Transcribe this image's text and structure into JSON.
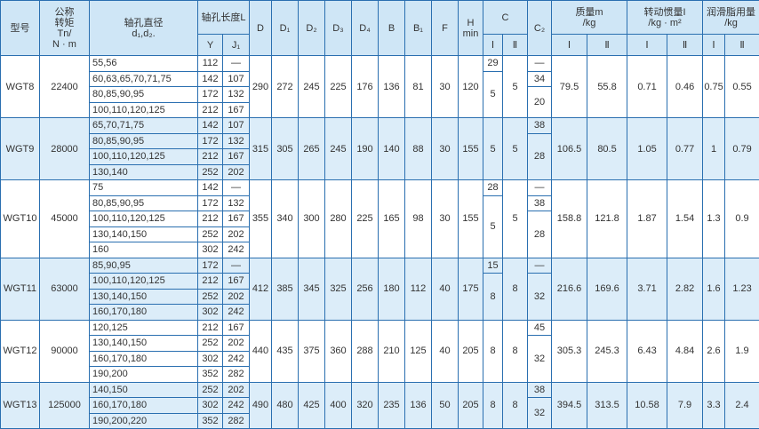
{
  "header": {
    "model": "型号",
    "torque": [
      "公称",
      "转矩",
      "Tn/",
      "N · m"
    ],
    "bore": [
      "轴孔直径",
      "d₁,d₂."
    ],
    "length": "轴孔长度L",
    "Y": "Y",
    "J1": "J₁",
    "dims": [
      "D",
      "D₁",
      "D₂",
      "D₃",
      "D₄",
      "B",
      "B₁",
      "F"
    ],
    "H": [
      "H",
      "min"
    ],
    "C": "C",
    "C2": "C₂",
    "mass": [
      "质量m",
      "/kg"
    ],
    "inertia": [
      "转动惯量I",
      "/kg · m²"
    ],
    "grease": [
      "润滑脂用量",
      "/kg"
    ],
    "sub": [
      "Ⅰ",
      "Ⅱ",
      "Ⅰ",
      "Ⅱ",
      "Ⅰ",
      "Ⅱ",
      "Ⅰ",
      "Ⅱ"
    ]
  },
  "groups": [
    {
      "model": "WGT8",
      "torque": "22400",
      "bores": [
        {
          "d": "55,56",
          "Y": "112",
          "J1": "—"
        },
        {
          "d": "60,63,65,70,71,75",
          "Y": "142",
          "J1": "107"
        },
        {
          "d": "80,85,90,95",
          "Y": "172",
          "J1": "132"
        },
        {
          "d": "100,110,120,125",
          "Y": "212",
          "J1": "167"
        }
      ],
      "dims": [
        "290",
        "272",
        "245",
        "225",
        "176",
        "136",
        "81",
        "30",
        "120"
      ],
      "cI": [
        "29",
        "5",
        null,
        null
      ],
      "cII": [
        "5",
        null,
        null,
        null
      ],
      "c2": [
        "—",
        "34",
        "20",
        null
      ],
      "mass": [
        "79.5",
        "55.8"
      ],
      "inertia": [
        "0.71",
        "0.46"
      ],
      "grease": [
        "0.75",
        "0.55"
      ]
    },
    {
      "model": "WGT9",
      "torque": "28000",
      "bores": [
        {
          "d": "65,70,71,75",
          "Y": "142",
          "J1": "107"
        },
        {
          "d": "80,85,90,95",
          "Y": "172",
          "J1": "132"
        },
        {
          "d": "100,110,120,125",
          "Y": "212",
          "J1": "167"
        },
        {
          "d": "130,140",
          "Y": "252",
          "J1": "202"
        }
      ],
      "dims": [
        "315",
        "305",
        "265",
        "245",
        "190",
        "140",
        "88",
        "30",
        "155"
      ],
      "cI": [
        "5",
        null,
        null,
        null
      ],
      "cII": [
        "5",
        null,
        null,
        null
      ],
      "c2": [
        "38",
        "28",
        null,
        null
      ],
      "mass": [
        "106.5",
        "80.5"
      ],
      "inertia": [
        "1.05",
        "0.77"
      ],
      "grease": [
        "1",
        "0.79"
      ]
    },
    {
      "model": "WGT10",
      "torque": "45000",
      "bores": [
        {
          "d": "75",
          "Y": "142",
          "J1": "—"
        },
        {
          "d": "80,85,90,95",
          "Y": "172",
          "J1": "132"
        },
        {
          "d": "100,110,120,125",
          "Y": "212",
          "J1": "167"
        },
        {
          "d": "130,140,150",
          "Y": "252",
          "J1": "202"
        },
        {
          "d": "160",
          "Y": "302",
          "J1": "242"
        }
      ],
      "dims": [
        "355",
        "340",
        "300",
        "280",
        "225",
        "165",
        "98",
        "30",
        "155"
      ],
      "cI": [
        "28",
        "5",
        null,
        null,
        null
      ],
      "cII": [
        "5",
        null,
        null,
        null,
        null
      ],
      "c2": [
        "—",
        "38",
        "28",
        null,
        null
      ],
      "mass": [
        "158.8",
        "121.8"
      ],
      "inertia": [
        "1.87",
        "1.54"
      ],
      "grease": [
        "1.3",
        "0.9"
      ]
    },
    {
      "model": "WGT11",
      "torque": "63000",
      "bores": [
        {
          "d": "85,90,95",
          "Y": "172",
          "J1": "—"
        },
        {
          "d": "100,110,120,125",
          "Y": "212",
          "J1": "167"
        },
        {
          "d": "130,140,150",
          "Y": "252",
          "J1": "202"
        },
        {
          "d": "160,170,180",
          "Y": "302",
          "J1": "242"
        }
      ],
      "dims": [
        "412",
        "385",
        "345",
        "325",
        "256",
        "180",
        "112",
        "40",
        "175"
      ],
      "cI": [
        "15",
        "8",
        null,
        null
      ],
      "cII": [
        "8",
        null,
        null,
        null
      ],
      "c2": [
        "—",
        "32",
        null,
        null
      ],
      "mass": [
        "216.6",
        "169.6"
      ],
      "inertia": [
        "3.71",
        "2.82"
      ],
      "grease": [
        "1.6",
        "1.23"
      ]
    },
    {
      "model": "WGT12",
      "torque": "90000",
      "bores": [
        {
          "d": "120,125",
          "Y": "212",
          "J1": "167"
        },
        {
          "d": "130,140,150",
          "Y": "252",
          "J1": "202"
        },
        {
          "d": "160,170,180",
          "Y": "302",
          "J1": "242"
        },
        {
          "d": "190,200",
          "Y": "352",
          "J1": "282"
        }
      ],
      "dims": [
        "440",
        "435",
        "375",
        "360",
        "288",
        "210",
        "125",
        "40",
        "205"
      ],
      "cI": [
        "8",
        null,
        null,
        null
      ],
      "cII": [
        "8",
        null,
        null,
        null
      ],
      "c2": [
        "45",
        "32",
        null,
        null
      ],
      "mass": [
        "305.3",
        "245.3"
      ],
      "inertia": [
        "6.43",
        "4.84"
      ],
      "grease": [
        "2.6",
        "1.9"
      ]
    },
    {
      "model": "WGT13",
      "torque": "125000",
      "bores": [
        {
          "d": "140,150",
          "Y": "252",
          "J1": "202"
        },
        {
          "d": "160,170,180",
          "Y": "302",
          "J1": "242"
        },
        {
          "d": "190,200,220",
          "Y": "352",
          "J1": "282"
        }
      ],
      "dims": [
        "490",
        "480",
        "425",
        "400",
        "320",
        "235",
        "136",
        "50",
        "205"
      ],
      "cI": [
        "8",
        null,
        null
      ],
      "cII": [
        "8",
        null,
        null
      ],
      "c2": [
        "38",
        "32",
        null
      ],
      "mass": [
        "394.5",
        "313.5"
      ],
      "inertia": [
        "10.58",
        "7.9"
      ],
      "grease": [
        "3.3",
        "2.4"
      ]
    }
  ]
}
